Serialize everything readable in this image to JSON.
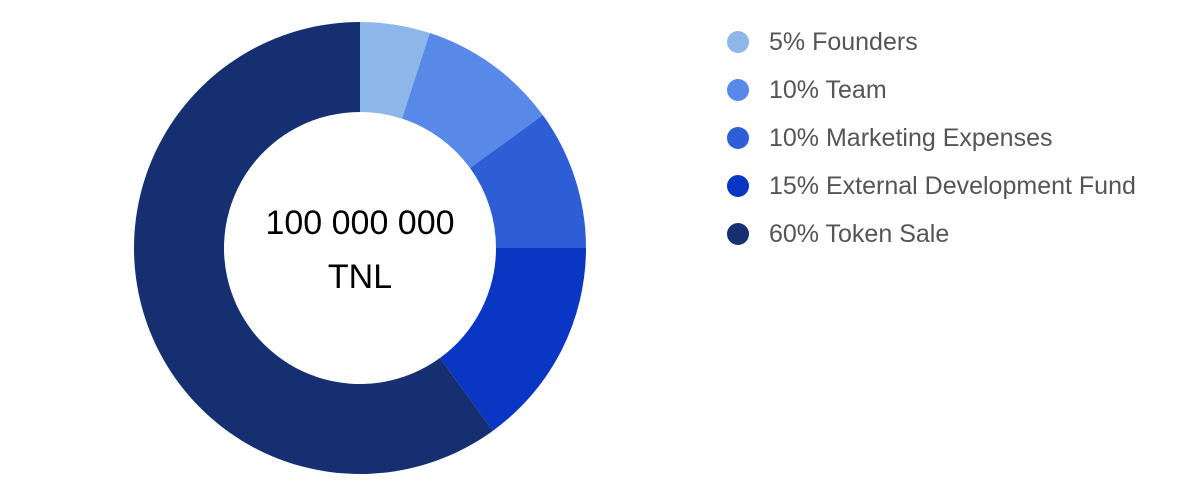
{
  "chart_data": {
    "type": "pie",
    "donut": true,
    "center_label_lines": [
      "100 000 000",
      "TNL"
    ],
    "legend_position": "right",
    "slices": [
      {
        "label": "5% Founders",
        "value": 5,
        "color": "#8cb7e8"
      },
      {
        "label": "10% Team",
        "value": 10,
        "color": "#5888e8"
      },
      {
        "label": "10% Marketing Expenses",
        "value": 10,
        "color": "#2e5ed6"
      },
      {
        "label": "15% External Development Fund",
        "value": 15,
        "color": "#0a36c4"
      },
      {
        "label": "60% Token Sale",
        "value": 60,
        "color": "#152f70"
      }
    ]
  }
}
